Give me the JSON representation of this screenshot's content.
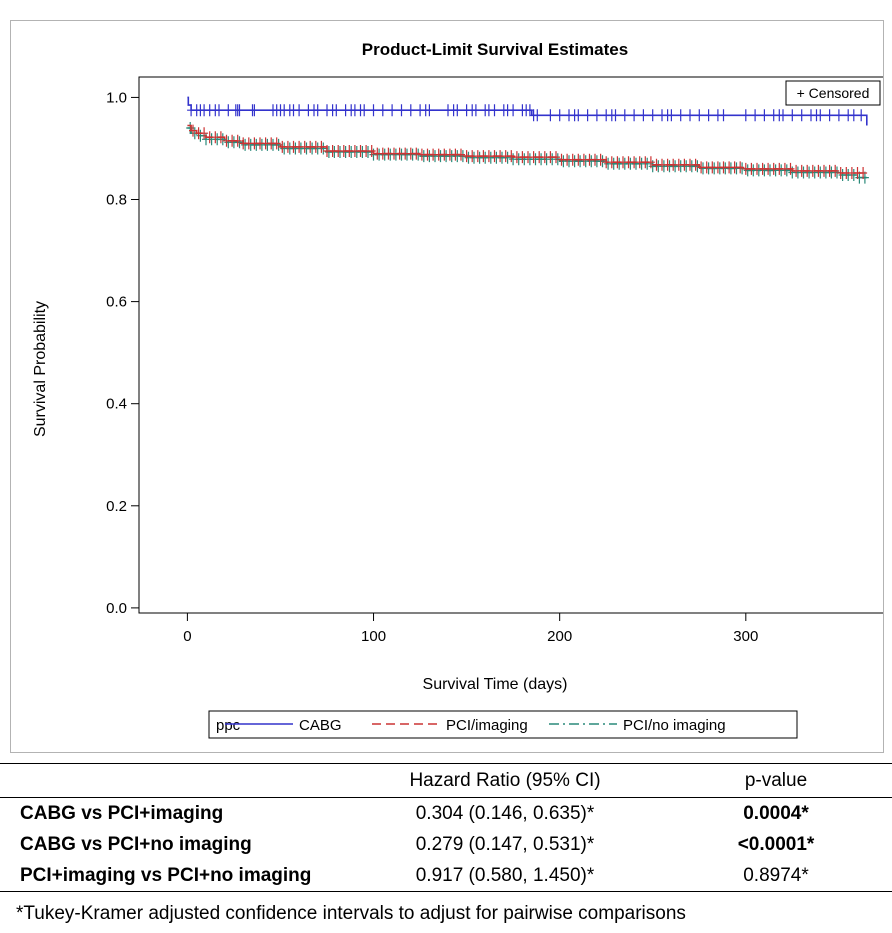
{
  "chart_data": {
    "type": "line",
    "title": "Product-Limit Survival Estimates",
    "xlabel": "Survival Time (days)",
    "ylabel": "Survival Probability",
    "xlim": [
      -26,
      378
    ],
    "ylim": [
      -0.01,
      1.04
    ],
    "xticks": [
      0,
      100,
      200,
      300
    ],
    "yticks": [
      0.0,
      0.2,
      0.4,
      0.6,
      0.8,
      1.0
    ],
    "xtick_labels": [
      "0",
      "100",
      "200",
      "300"
    ],
    "ytick_labels": [
      "0.0",
      "0.2",
      "0.4",
      "0.6",
      "0.8",
      "1.0"
    ],
    "step": true,
    "censored_label": "+ Censored",
    "legend_title": "ppc",
    "legend_position": "bottom",
    "series": [
      {
        "name": "CABG",
        "color": "#3333cc",
        "dash": "solid",
        "x": [
          0,
          0.5,
          2,
          185,
          365
        ],
        "y": [
          1.0,
          0.985,
          0.975,
          0.965,
          0.945
        ],
        "censored_x": [
          2,
          5,
          7,
          9,
          12,
          15,
          17,
          22,
          26,
          27,
          28,
          35,
          36,
          46,
          48,
          50,
          52,
          55,
          57,
          60,
          65,
          68,
          70,
          75,
          78,
          80,
          85,
          88,
          90,
          93,
          95,
          100,
          105,
          110,
          115,
          120,
          125,
          128,
          130,
          140,
          143,
          145,
          150,
          153,
          155,
          160,
          162,
          165,
          170,
          172,
          175,
          180,
          182,
          184,
          186,
          188,
          195,
          200,
          205,
          208,
          210,
          215,
          220,
          225,
          228,
          230,
          235,
          240,
          245,
          250,
          255,
          258,
          260,
          265,
          270,
          275,
          280,
          285,
          288,
          300,
          305,
          310,
          315,
          318,
          320,
          325,
          330,
          335,
          338,
          340,
          345,
          350,
          355,
          358,
          362
        ]
      },
      {
        "name": "PCI/imaging",
        "color": "#cc3333",
        "dash": "9 5",
        "x": [
          0,
          2,
          5,
          10,
          20,
          30,
          50,
          75,
          100,
          125,
          150,
          175,
          200,
          225,
          250,
          275,
          300,
          325,
          350,
          365
        ],
        "y": [
          0.945,
          0.935,
          0.93,
          0.922,
          0.915,
          0.91,
          0.903,
          0.895,
          0.89,
          0.888,
          0.885,
          0.883,
          0.878,
          0.873,
          0.868,
          0.863,
          0.86,
          0.856,
          0.852,
          0.85
        ],
        "censored_x": [
          3,
          6,
          9,
          12,
          15,
          18,
          21,
          24,
          27,
          30,
          33,
          36,
          39,
          42,
          45,
          48,
          51,
          54,
          57,
          60,
          63,
          66,
          69,
          72,
          75,
          78,
          81,
          84,
          87,
          90,
          93,
          96,
          99,
          102,
          105,
          108,
          111,
          114,
          117,
          120,
          123,
          126,
          129,
          132,
          135,
          138,
          141,
          144,
          147,
          150,
          153,
          156,
          159,
          162,
          165,
          168,
          171,
          174,
          177,
          180,
          183,
          186,
          189,
          192,
          195,
          198,
          201,
          204,
          207,
          210,
          213,
          216,
          219,
          222,
          225,
          228,
          231,
          234,
          237,
          240,
          243,
          246,
          249,
          252,
          255,
          258,
          261,
          264,
          267,
          270,
          273,
          276,
          279,
          282,
          285,
          288,
          291,
          294,
          297,
          300,
          303,
          306,
          309,
          312,
          315,
          318,
          321,
          324,
          327,
          330,
          333,
          336,
          339,
          342,
          345,
          348,
          351,
          354,
          357,
          360,
          363
        ]
      },
      {
        "name": "PCI/no imaging",
        "color": "#2a8a7a",
        "dash": "10 4 2 4",
        "x": [
          0,
          2,
          5,
          10,
          20,
          30,
          50,
          75,
          100,
          125,
          150,
          175,
          200,
          225,
          250,
          275,
          300,
          325,
          350,
          360,
          365
        ],
        "y": [
          0.94,
          0.93,
          0.925,
          0.918,
          0.912,
          0.907,
          0.9,
          0.893,
          0.888,
          0.885,
          0.882,
          0.879,
          0.875,
          0.87,
          0.865,
          0.861,
          0.857,
          0.853,
          0.848,
          0.843,
          0.843
        ],
        "censored_x": [
          1.5,
          4,
          7,
          10,
          13,
          16,
          19,
          22,
          25,
          28,
          31,
          34,
          37,
          40,
          43,
          46,
          49,
          52,
          55,
          58,
          61,
          64,
          67,
          70,
          73,
          76,
          79,
          82,
          85,
          88,
          91,
          94,
          97,
          100,
          103,
          106,
          109,
          112,
          115,
          118,
          121,
          124,
          127,
          130,
          133,
          136,
          139,
          142,
          145,
          148,
          151,
          154,
          157,
          160,
          163,
          166,
          169,
          172,
          175,
          178,
          181,
          184,
          187,
          190,
          193,
          196,
          199,
          202,
          205,
          208,
          211,
          214,
          217,
          220,
          223,
          226,
          229,
          232,
          235,
          238,
          241,
          244,
          247,
          250,
          253,
          256,
          259,
          262,
          265,
          268,
          271,
          274,
          277,
          280,
          283,
          286,
          289,
          292,
          295,
          298,
          301,
          304,
          307,
          310,
          313,
          316,
          319,
          322,
          325,
          328,
          331,
          334,
          337,
          340,
          343,
          346,
          349,
          352,
          355,
          358,
          361,
          364
        ]
      }
    ]
  },
  "table": {
    "headers": [
      "",
      "Hazard Ratio (95% CI)",
      "p-value"
    ],
    "rows": [
      {
        "label": "CABG vs PCI+imaging",
        "hr": "0.304 (0.146, 0.635)*",
        "p": "0.0004*",
        "p_bold": true
      },
      {
        "label": "CABG vs PCI+no imaging",
        "hr": "0.279 (0.147, 0.531)*",
        "p": "<0.0001*",
        "p_bold": true
      },
      {
        "label": "PCI+imaging vs PCI+no imaging",
        "hr": "0.917 (0.580, 1.450)*",
        "p": "0.8974*",
        "p_bold": false
      }
    ]
  },
  "footnote": "*Tukey-Kramer adjusted confidence intervals to adjust for pairwise comparisons"
}
